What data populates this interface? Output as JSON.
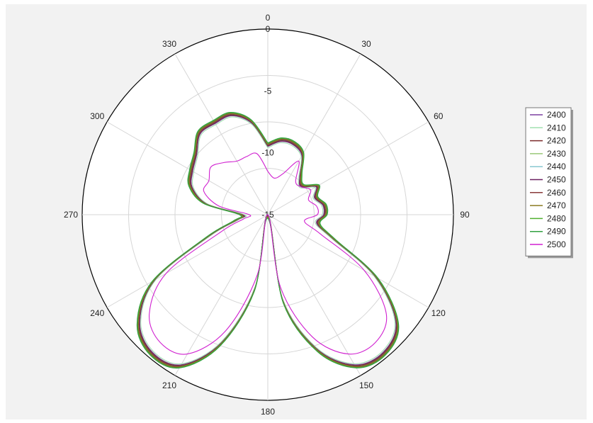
{
  "chart_data": {
    "type": "polar",
    "title": "",
    "angle_labels": [
      "0",
      "30",
      "60",
      "90",
      "120",
      "150",
      "180",
      "210",
      "240",
      "270",
      "300",
      "330"
    ],
    "radial_labels": [
      "0",
      "-5",
      "-10",
      "-15"
    ],
    "rlim": [
      -15,
      0
    ],
    "grid": true,
    "legend_position": "right",
    "series": [
      {
        "name": "2400",
        "color": "#7b3fa0"
      },
      {
        "name": "2410",
        "color": "#a0e0b0"
      },
      {
        "name": "2420",
        "color": "#7a2a2a"
      },
      {
        "name": "2430",
        "color": "#9ac878"
      },
      {
        "name": "2440",
        "color": "#88c8d0"
      },
      {
        "name": "2450",
        "color": "#6a2060"
      },
      {
        "name": "2460",
        "color": "#8a3a3a"
      },
      {
        "name": "2470",
        "color": "#8a7a20"
      },
      {
        "name": "2480",
        "color": "#50b030"
      },
      {
        "name": "2490",
        "color": "#30a040"
      },
      {
        "name": "2500",
        "color": "#d020d0"
      }
    ],
    "pattern_points": {
      "angles_deg": [
        0,
        10,
        20,
        30,
        40,
        50,
        60,
        70,
        80,
        90,
        100,
        110,
        120,
        130,
        140,
        150,
        160,
        170,
        180,
        190,
        200,
        210,
        220,
        230,
        240,
        250,
        260,
        270,
        280,
        290,
        300,
        310,
        320,
        330,
        340,
        350,
        360
      ],
      "base_db": [
        -9.5,
        -9.0,
        -9.0,
        -9.5,
        -11.0,
        -11.5,
        -10.5,
        -11.0,
        -10.5,
        -10.5,
        -11.0,
        -9.5,
        -5.0,
        -1.5,
        -0.5,
        -1.0,
        -3.5,
        -8.0,
        -15.0,
        -9.0,
        -4.0,
        -1.0,
        -0.5,
        -1.5,
        -4.5,
        -10.0,
        -12.5,
        -13.0,
        -10.0,
        -8.5,
        -8.0,
        -7.5,
        -6.5,
        -6.5,
        -6.5,
        -7.5,
        -9.5
      ],
      "main_variants": [
        {
          "name": "2400",
          "offset": 0.0
        },
        {
          "name": "2410",
          "offset": -0.1
        },
        {
          "name": "2420",
          "offset": 0.05
        },
        {
          "name": "2430",
          "offset": 0.15
        },
        {
          "name": "2440",
          "offset": 0.1
        },
        {
          "name": "2450",
          "offset": 0.1
        },
        {
          "name": "2460",
          "offset": 0.2
        },
        {
          "name": "2470",
          "offset": 0.15
        },
        {
          "name": "2480",
          "offset": 0.25
        },
        {
          "name": "2490",
          "offset": 0.3
        }
      ],
      "outlier_series": {
        "name": "2500",
        "db": [
          -11.5,
          -12.0,
          -11.5,
          -10.0,
          -11.5,
          -11.5,
          -11.0,
          -11.5,
          -11.0,
          -11.0,
          -12.0,
          -10.5,
          -6.0,
          -2.5,
          -1.5,
          -2.0,
          -4.5,
          -9.0,
          -15.0,
          -10.0,
          -5.0,
          -2.0,
          -1.5,
          -2.5,
          -5.5,
          -11.0,
          -13.0,
          -13.5,
          -11.0,
          -9.5,
          -9.5,
          -9.0,
          -9.5,
          -10.0,
          -10.0,
          -10.0,
          -11.5
        ]
      }
    }
  }
}
